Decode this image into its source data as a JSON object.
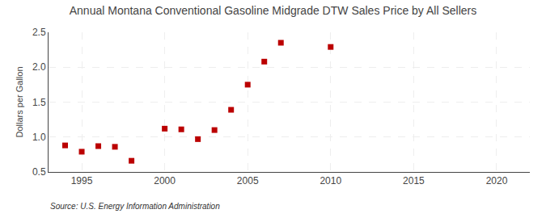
{
  "chart_data": {
    "type": "scatter",
    "title": "Annual Montana Conventional Gasoline Midgrade DTW Sales Price by All Sellers",
    "ylabel": "Dollars per Gallon",
    "annotations": [
      "Source: U.S. Energy Information Administration"
    ],
    "x": [
      1994,
      1995,
      1996,
      1997,
      1998,
      2000,
      2001,
      2002,
      2003,
      2004,
      2005,
      2006,
      2007,
      2010
    ],
    "values": [
      0.88,
      0.79,
      0.87,
      0.86,
      0.66,
      1.12,
      1.11,
      0.97,
      1.1,
      1.39,
      1.75,
      2.08,
      2.35,
      2.29
    ],
    "color": "#bb0000",
    "marker": "square",
    "xlim": [
      1993,
      2022
    ],
    "ylim": [
      0.5,
      2.5
    ],
    "xticks": [
      1995,
      2000,
      2005,
      2010,
      2015,
      2020
    ],
    "yticks": [
      0.5,
      {
        "value": 1.0,
        "label": "1.0"
      },
      1.5,
      {
        "value": 2.0,
        "label": "2.0"
      },
      2.5
    ],
    "grid": true
  }
}
